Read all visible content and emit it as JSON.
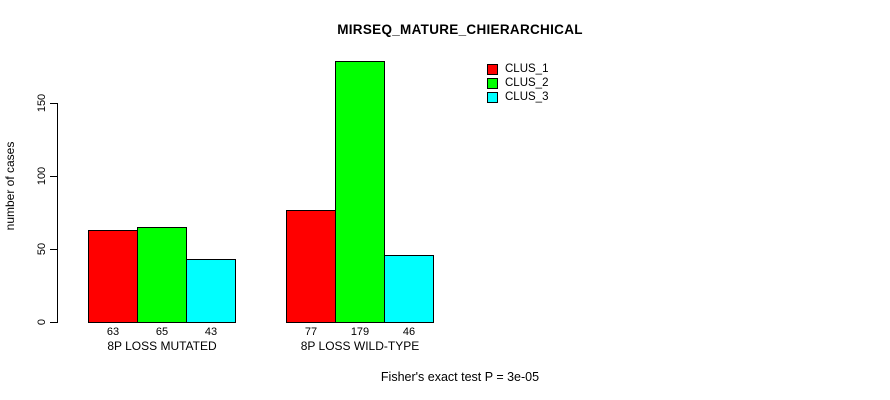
{
  "chart_data": {
    "type": "bar",
    "title": "MIRSEQ_MATURE_CHIERARCHICAL",
    "ylabel": "number of cases",
    "xlabel": "",
    "categories": [
      "8P LOSS MUTATED",
      "8P LOSS WILD-TYPE"
    ],
    "series": [
      {
        "name": "CLUS_1",
        "color": "#ff0000",
        "values": [
          63,
          77
        ]
      },
      {
        "name": "CLUS_2",
        "color": "#00ff00",
        "values": [
          65,
          179
        ]
      },
      {
        "name": "CLUS_3",
        "color": "#00ffff",
        "values": [
          43,
          46
        ]
      }
    ],
    "bar_value_labels": [
      [
        "63",
        "65",
        "43"
      ],
      [
        "77",
        "179",
        "46"
      ]
    ],
    "yticks": [
      0,
      50,
      100,
      150
    ],
    "ylim": [
      0,
      183
    ],
    "grid": false,
    "legend_position": "top-right",
    "bar_border_color": "#000000",
    "caption": "Fisher's exact test P = 3e-05"
  }
}
